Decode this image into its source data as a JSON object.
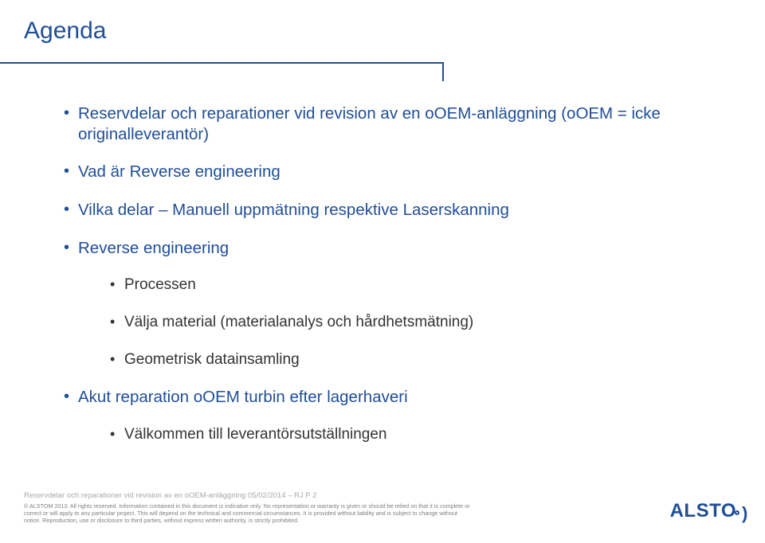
{
  "title": "Agenda",
  "colors": {
    "brand": "#1f4e96",
    "body_text": "#333333",
    "footer_meta": "#a7a9ac",
    "footer_legal": "#808080",
    "background": "#ffffff"
  },
  "typography": {
    "title_fontsize": 30,
    "lvl1_fontsize": 20.5,
    "lvl2_fontsize": 19,
    "footer_meta_fontsize": 9.5,
    "footer_legal_fontsize": 7.2
  },
  "items": [
    {
      "text": "Reservdelar och reparationer vid revision av en oOEM-anläggning (oOEM = icke originalleverantör)"
    },
    {
      "text": "Vad är Reverse engineering"
    },
    {
      "text": "Vilka delar – Manuell uppmätning respektive Laserskanning"
    },
    {
      "text": "Reverse engineering",
      "children": [
        {
          "text": "Processen"
        },
        {
          "text": "Välja material (materialanalys och hårdhetsmätning)"
        },
        {
          "text": "Geometrisk datainsamling"
        }
      ]
    },
    {
      "text": "Akut reparation oOEM turbin efter lagerhaveri",
      "children": [
        {
          "text": "Välkommen till leverantörsutställningen"
        }
      ]
    }
  ],
  "footer": {
    "meta": "Reservdelar och reparationer vid revision av en oOEM-anläggning  05/02/2014 – RJ  P 2",
    "legal": "© ALSTOM 2013. All rights reserved. Information contained in this document is indicative only. No representation or warranty is given or should be relied on that it is complete or correct or will apply to any particular project. This will depend on the technical and commercial circumstances. It is provided without liability and is subject to change without notice. Reproduction, use or disclosure to third parties, without express written authority, is strictly prohibited."
  },
  "logo": {
    "text": "ALSTO",
    "suffix_shape": "open-circle-paren"
  }
}
